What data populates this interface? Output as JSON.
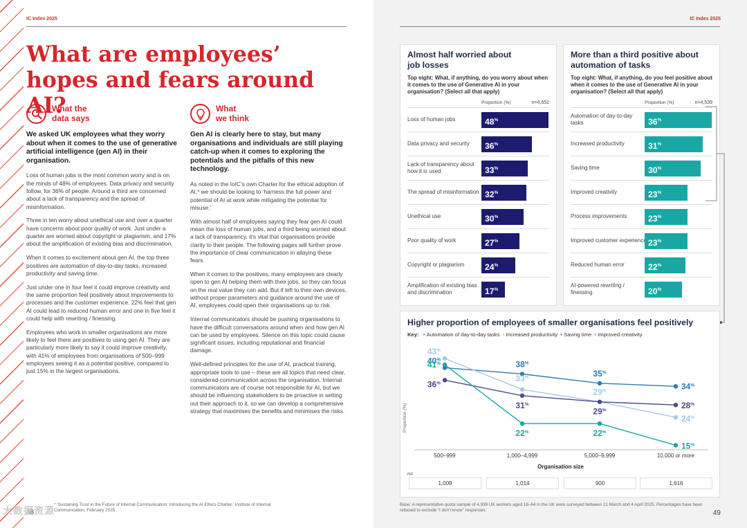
{
  "header": {
    "left_tag": "IC Index 2025",
    "right_tag": "IC Index 2025"
  },
  "title": "What are employees’ hopes and fears around AI?",
  "data_says": {
    "heading_line1": "What the",
    "heading_line2": "data says",
    "lead": "We asked UK employees what they worry about when it comes to the use of generative artificial intelligence (gen AI) in their organisation.",
    "paragraphs": [
      "Loss of human jobs is the most common worry and is on the minds of 48% of employees. Data privacy and security follow, for 36% of people. Around a third are concerned about a lack of transparency and the spread of misinformation.",
      "Three in ten worry about unethical use and over a quarter have concerns about poor quality of work. Just under a quarter are worried about copyright or plagiarism, and 17% about the amplification of existing bias and discrimination.",
      "When it comes to excitement about gen AI, the top three positives are automation of day-to-day tasks, increased productivity and saving time.",
      "Just under one in four feel it could improve creativity and the same proportion feel positively about improvements to processes and the customer experience. 22% feel that gen AI could lead to reduced human error and one in five feel it could help with rewriting / finessing.",
      "Employees who work in smaller organisations are more likely to feel there are positives to using gen AI. They are particularly more likely to say it could improve creativity, with 41% of employees from organisations of 500–999 employees seeing it as a potential positive, compared to just 15% in the largest organisations."
    ]
  },
  "we_think": {
    "heading_line1": "What",
    "heading_line2": "we think",
    "lead": "Gen AI is clearly here to stay, but many organisations and individuals are still playing catch-up when it comes to exploring the potentials and the pitfalls of this new technology.",
    "paragraphs": [
      "As noted in the IoIC’s own Charter for the ethical adoption of AI,* we should be looking to ‘harness the full power and potential of AI at work while mitigating the potential for misuse.’",
      "With almost half of employees saying they fear gen AI could mean the loss of human jobs, and a third being worried about a lack of transparency, it’s vital that organisations provide clarity to their people. The following pages will further prove the importance of clear communication in allaying these fears.",
      "When it comes to the positives, many employees are clearly open to gen AI helping them with their jobs, so they can focus on the real value they can add. But if left to their own devices, without proper parameters and guidance around the use of AI, employees could open their organisations up to risk.",
      "Internal communicators should be pushing organisations to have the difficult conversations around when and how gen AI can be used by employees. Silence on this topic could cause significant issues, including reputational and financial damage.",
      "Well-defined principles for the use of AI, practical training, appropriate tools to use – these are all topics that need clear, considered communication across the organisation. Internal communicators are of course not responsible for AI, but we should be influencing stakeholders to be proactive in setting out their approach to it, so we can develop a comprehensive strategy that maximises the benefits and minimises the risks."
    ]
  },
  "footnote": "* ‘Sustaining Trust in the Future of Internal Communication: Introducing the AI Ethics Charter,’ Institute of Internal Communication, February 2025.",
  "page_left": "48",
  "page_right": "49",
  "watermark": "大数据资源",
  "base_note": "Base: A representative quota sample of 4,939 UK workers aged 18–64 in the UK were surveyed between 21 March and 4 April 2025. Percentages have been rebased to exclude “I don’t know” responses.",
  "colors": {
    "red": "#d6262b",
    "navy": "#1d1b6e",
    "teal": "#1aa7a4"
  },
  "chart_data": [
    {
      "type": "bar",
      "title": "Almost half worried about job losses",
      "question": "Top eight: What, if anything, do you worry about when it comes to the use of Generative AI in your organisation? (Select all that apply)",
      "axis_label": "Proportion (%)",
      "n_label": "n=4,652",
      "pct_suffix": "%",
      "categories": [
        "Loss of human jobs",
        "Data privacy and security",
        "Lack of transparency about how it is used",
        "The spread of misinformation",
        "Unethical use",
        "Poor quality of work",
        "Copyright or plagiarism",
        "Amplification of existing bias and discrimination"
      ],
      "values": [
        48,
        36,
        33,
        32,
        30,
        27,
        24,
        17
      ],
      "color": "#1d1b6e"
    },
    {
      "type": "bar",
      "title": "More than a third positive about automation of tasks",
      "question": "Top eight: What, if anything, do you feel positive about when it comes to the use of Generative AI in your organisation? (Select all that apply)",
      "axis_label": "Proportion (%)",
      "n_label": "n=4,539",
      "pct_suffix": "%",
      "categories": [
        "Automation of day-to-day tasks",
        "Increased productivity",
        "Saving time",
        "Improved creativity",
        "Process improvements",
        "Improved customer experience",
        "Reduced human error",
        "AI-powered rewriting / finessing"
      ],
      "values": [
        36,
        31,
        30,
        23,
        23,
        23,
        22,
        20
      ],
      "color": "#1aa7a4"
    },
    {
      "type": "line",
      "title": "Higher proportion of employees of smaller organisations feel positively",
      "key_label": "Key:",
      "xlabel": "Organisation size",
      "ylabel": "Proportion (%)",
      "categories": [
        "500–999",
        "1,000–4,999",
        "5,000–9,999",
        "10,000 or more"
      ],
      "n_label": "n=",
      "n_values": [
        "1,009",
        "1,014",
        "900",
        "1,616"
      ],
      "pct_suffix": "%",
      "series": [
        {
          "name": "Automation of day-to-day tasks",
          "values": [
            40,
            38,
            35,
            34
          ],
          "color": "#2a7db5"
        },
        {
          "name": "Increased productivity",
          "values": [
            43,
            33,
            29,
            24
          ],
          "color": "#a7c8e6"
        },
        {
          "name": "Saving time",
          "values": [
            36,
            31,
            29,
            28
          ],
          "color": "#4a4a8c"
        },
        {
          "name": "Improved creativity",
          "values": [
            41,
            22,
            22,
            15
          ],
          "color": "#1aa7a4"
        }
      ]
    }
  ]
}
